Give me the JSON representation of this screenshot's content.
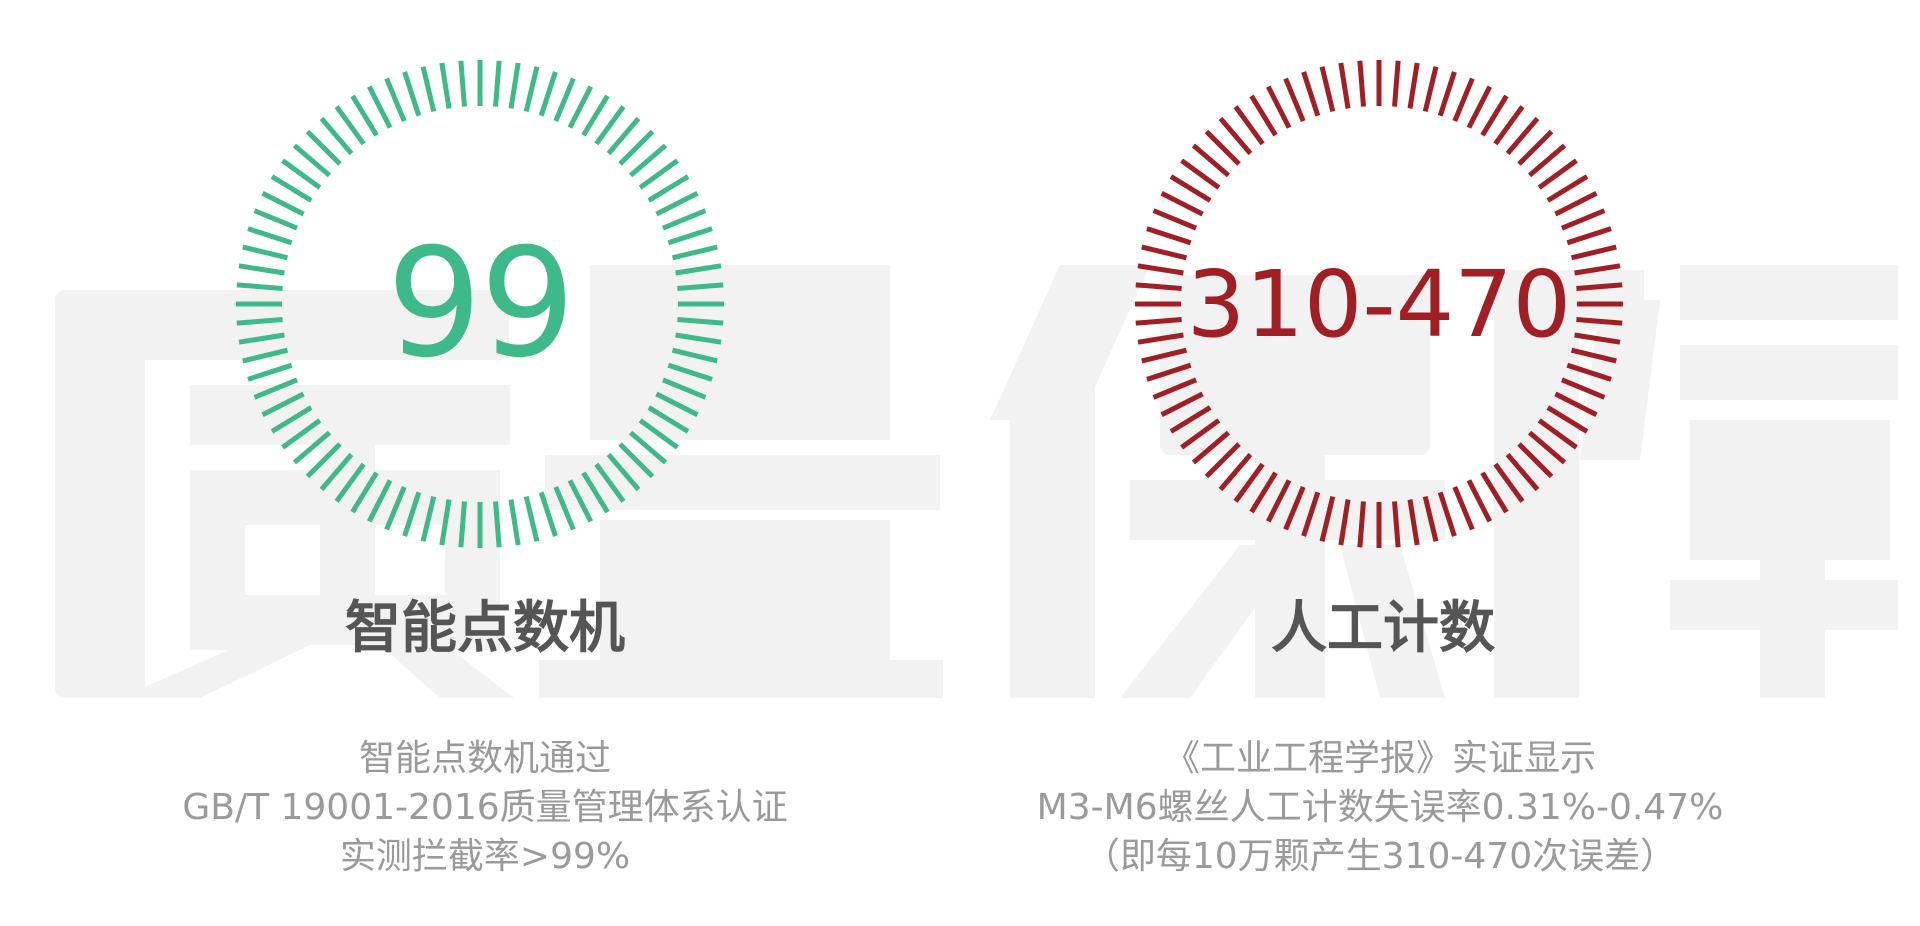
{
  "background_text": [
    "质",
    "量",
    "保",
    "障"
  ],
  "colors": {
    "accent_green": "#3db98a",
    "accent_red": "#a11f24",
    "title": "#555555",
    "body": "#9a9a9a",
    "watermark": "#f2f2f2"
  },
  "left": {
    "value": "99",
    "title": "智能点数机",
    "description": [
      "智能点数机通过",
      "GB/T 19001-2016质量管理体系认证",
      "实测拦截率>99%"
    ]
  },
  "right": {
    "value": "310-470",
    "title": "人工计数",
    "description": [
      "《工业工程学报》实证显示",
      "M3-M6螺丝人工计数失误率0.31%-0.47%",
      "（即每10万颗产生310-470次误差）"
    ]
  }
}
